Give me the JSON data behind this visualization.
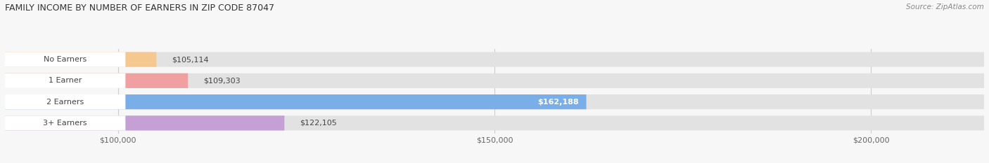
{
  "title": "FAMILY INCOME BY NUMBER OF EARNERS IN ZIP CODE 87047",
  "source": "Source: ZipAtlas.com",
  "categories": [
    "No Earners",
    "1 Earner",
    "2 Earners",
    "3+ Earners"
  ],
  "values": [
    105114,
    109303,
    162188,
    122105
  ],
  "bar_colors": [
    "#f5c890",
    "#f0a0a0",
    "#7aaee8",
    "#c4a0d4"
  ],
  "bar_bg_track_color": "#e2e2e2",
  "label_colors": [
    "#555555",
    "#555555",
    "#ffffff",
    "#555555"
  ],
  "x_min": 85000,
  "x_max": 215000,
  "x_ticks": [
    100000,
    150000,
    200000
  ],
  "x_tick_labels": [
    "$100,000",
    "$150,000",
    "$200,000"
  ],
  "fig_width": 14.06,
  "fig_height": 2.33,
  "background_color": "#f7f7f7",
  "value_labels": [
    "$105,114",
    "$109,303",
    "$162,188",
    "$122,105"
  ],
  "pill_text_color": "#444444",
  "pill_bg_color": "#ffffff",
  "bar_height": 0.7,
  "bar_gap": 0.3
}
